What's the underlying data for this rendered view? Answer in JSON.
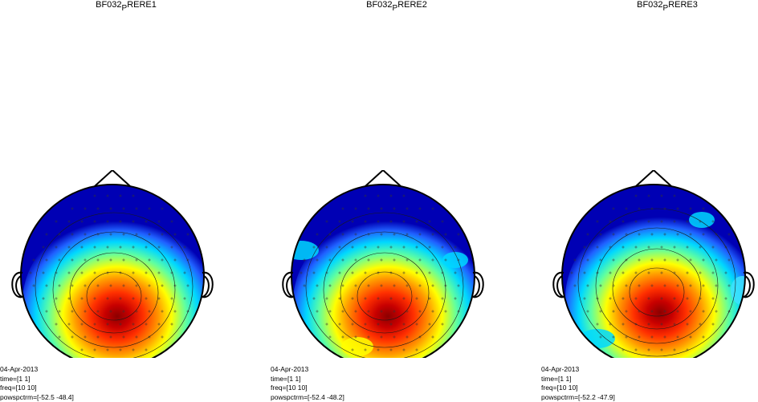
{
  "figure": {
    "panels": [
      {
        "title_main": "BF032",
        "title_sub": "P",
        "title_tail": "RERE1",
        "info": {
          "date": "04-Apr-2013",
          "time": "time=[1 1]",
          "freq": "freq=[10 10]",
          "powspctrm": "powspctrm=[-52.5 -48.4]"
        }
      },
      {
        "title_main": "BF032",
        "title_sub": "P",
        "title_tail": "RERE2",
        "info": {
          "date": "04-Apr-2013",
          "time": "time=[1 1]",
          "freq": "freq=[10 10]",
          "powspctrm": "powspctrm=[-52.4 -48.2]"
        }
      },
      {
        "title_main": "BF032",
        "title_sub": "P",
        "title_tail": "RERE3",
        "info": {
          "date": "04-Apr-2013",
          "time": "time=[1 1]",
          "freq": "freq=[10 10]",
          "powspctrm": "powspctrm=[-52.2 -47.9]"
        }
      }
    ],
    "colors": {
      "low": "#0000b4",
      "mid_low": "#00d8ff",
      "mid": "#ffff00",
      "high": "#ff3000",
      "max": "#8b0000",
      "outline": "#000000"
    }
  }
}
